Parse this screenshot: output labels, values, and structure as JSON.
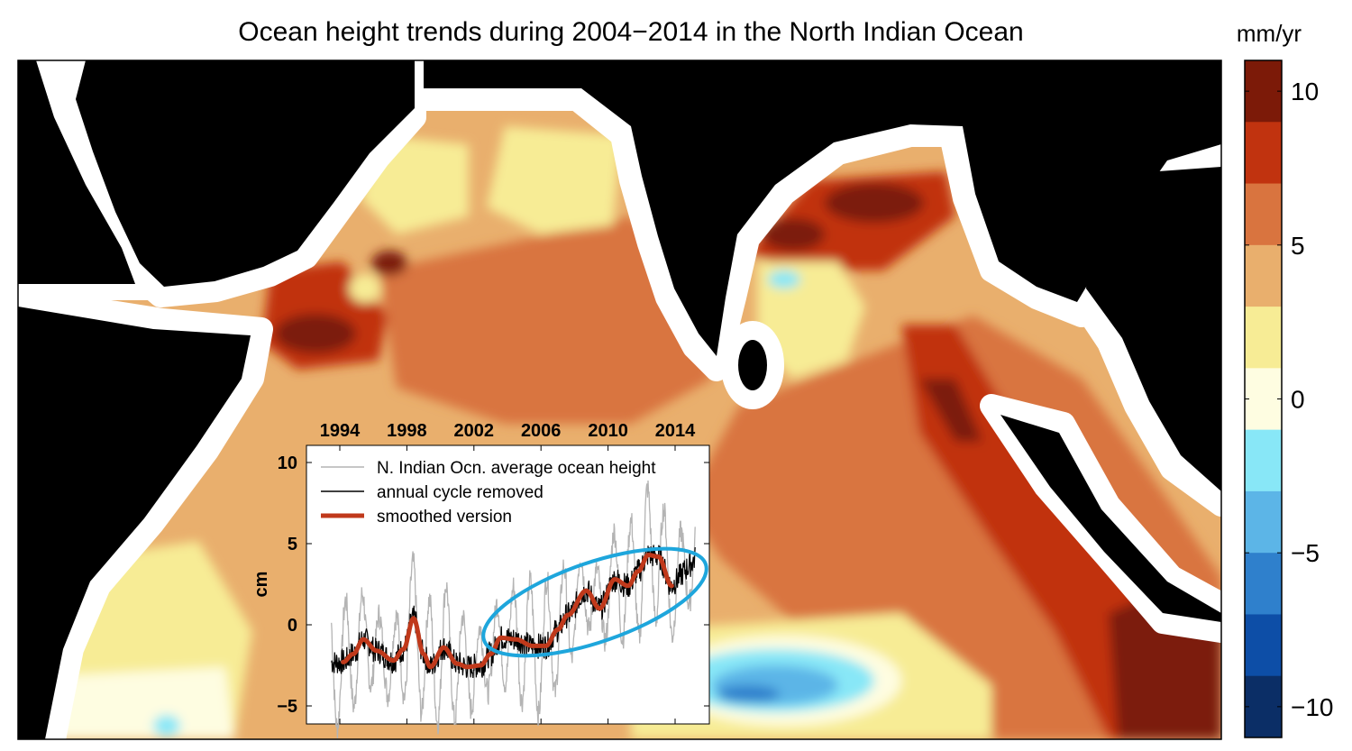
{
  "title": "Ocean height trends during 2004−2014 in the North Indian Ocean",
  "colorbar": {
    "unit": "mm/yr",
    "range": [
      -11,
      11
    ],
    "ticks": [
      {
        "value": 10,
        "label": "10"
      },
      {
        "value": 5,
        "label": "5"
      },
      {
        "value": 0,
        "label": "0"
      },
      {
        "value": -5,
        "label": "−5"
      },
      {
        "value": -10,
        "label": "−10"
      }
    ],
    "bands_top_to_bottom": [
      "#7c1a08",
      "#c1330f",
      "#d9743f",
      "#e9af6d",
      "#f7ec95",
      "#fefde1",
      "#88e7f7",
      "#5cb5e7",
      "#2f80cc",
      "#0d4ea7",
      "#0b2e66"
    ]
  },
  "map_colors": {
    "land": "#000000",
    "no_data": "#ffffff"
  },
  "chart_data": {
    "type": "line",
    "xlabel": "",
    "ylabel": "cm",
    "xlim": [
      1992,
      2016
    ],
    "ylim": [
      -6,
      11
    ],
    "x_ticks": [
      {
        "value": 1994,
        "label": "1994"
      },
      {
        "value": 1998,
        "label": "1998"
      },
      {
        "value": 2002,
        "label": "2002"
      },
      {
        "value": 2006,
        "label": "2006"
      },
      {
        "value": 2010,
        "label": "2010"
      },
      {
        "value": 2014,
        "label": "2014"
      }
    ],
    "y_ticks": [
      {
        "value": 10,
        "label": "10"
      },
      {
        "value": 5,
        "label": "5"
      },
      {
        "value": 0,
        "label": "0"
      },
      {
        "value": -5,
        "label": "−5"
      }
    ],
    "legend": [
      {
        "label": "N. Indian Ocn. average ocean height",
        "color": "#b4b4b4"
      },
      {
        "label": "annual cycle removed",
        "color": "#000000"
      },
      {
        "label": "smoothed version",
        "color": "#c0391b"
      }
    ],
    "legend_position": "top-left",
    "seasonal_amplitude_cm": 3.2,
    "smoothed": {
      "x": [
        1994.2,
        1994.8,
        1995.4,
        1996.2,
        1997.2,
        1997.8,
        1998.4,
        1999.0,
        1999.4,
        2000.2,
        2001.0,
        2001.6,
        2002.4,
        2003.0,
        2003.6,
        2004.5,
        2005.5,
        2006.3,
        2007.0,
        2007.6,
        2008.7,
        2009.5,
        2010.4,
        2011.2,
        2011.8,
        2012.4,
        2013.0,
        2013.8
      ],
      "y": [
        -2.3,
        -1.8,
        -0.9,
        -1.6,
        -2.2,
        -1.5,
        0.4,
        -1.8,
        -2.6,
        -1.4,
        -2.4,
        -2.6,
        -2.5,
        -1.8,
        -0.8,
        -0.9,
        -1.3,
        -1.3,
        -0.3,
        0.6,
        2.1,
        1.0,
        2.8,
        2.4,
        3.3,
        4.3,
        4.2,
        2.4
      ]
    },
    "annotation": "ellipse highlighting 2003-2015 rise",
    "annotation_color": "#1ea6dc"
  }
}
